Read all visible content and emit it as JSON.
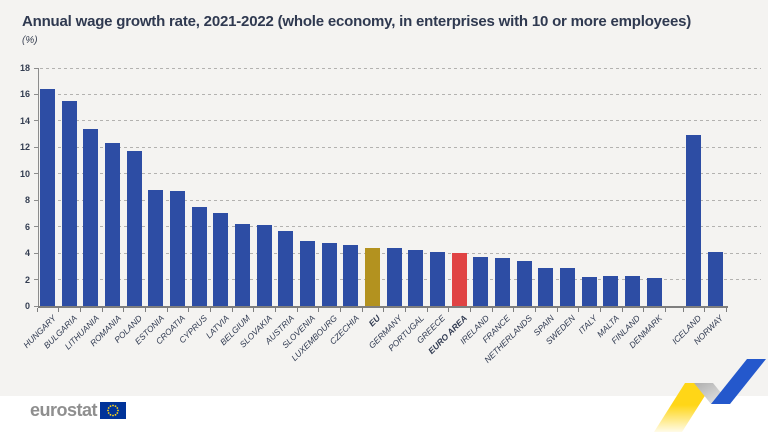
{
  "header": {
    "title": "Annual wage growth rate, 2021-2022 (whole economy, in enterprises with 10 or more employees)",
    "subtitle": "(%)"
  },
  "footer": {
    "logo_text": "eurostat"
  },
  "colors": {
    "background": "#f4f3f1",
    "footer_background": "#ffffff",
    "title_text": "#2f3950",
    "axis_text": "#333d51",
    "gridline": "#b3b2b0",
    "axis_line": "#7e7e7e",
    "bar_default": "#2d4da4",
    "bar_eu": "#b3921f",
    "bar_euro_area": "#e04343",
    "logo_text": "#8f8f8f",
    "logo_flag_bg": "#003399",
    "logo_star": "#ffd617",
    "ribbon_yellow": "#ffd617",
    "ribbon_gray": "#c3c3c3",
    "ribbon_blue": "#2458cc"
  },
  "chart_data": {
    "type": "bar",
    "title": "Annual wage growth rate, 2021-2022 (whole economy, in enterprises with 10 or more employees)",
    "xlabel": "",
    "ylabel": "(%)",
    "ylim": [
      0,
      18
    ],
    "yticks": [
      0,
      2,
      4,
      6,
      8,
      10,
      12,
      14,
      16,
      18
    ],
    "grid": "horizontal-dashed",
    "legend_position": "none",
    "categories": [
      "HUNGARY",
      "BULGARIA",
      "LITHUANIA",
      "ROMANIA",
      "POLAND",
      "ESTONIA",
      "CROATIA",
      "CYPRUS",
      "LATVIA",
      "BELGIUM",
      "SLOVAKIA",
      "AUSTRIA",
      "SLOVENIA",
      "LUXEMBOURG",
      "CZECHIA",
      "EU",
      "GERMANY",
      "PORTUGAL",
      "GREECE",
      "EURO AREA",
      "IRELAND",
      "FRANCE",
      "NETHERLANDS",
      "SPAIN",
      "SWEDEN",
      "ITALY",
      "MALTA",
      "FINLAND",
      "DENMARK",
      "ICELAND",
      "NORWAY"
    ],
    "values": [
      16.4,
      15.5,
      13.4,
      12.3,
      11.7,
      8.8,
      8.7,
      7.5,
      7.0,
      6.2,
      6.1,
      5.7,
      4.9,
      4.8,
      4.6,
      4.4,
      4.4,
      4.2,
      4.1,
      4.0,
      3.7,
      3.6,
      3.4,
      2.9,
      2.9,
      2.2,
      2.3,
      2.3,
      2.1,
      12.9,
      4.1
    ],
    "color_keys": [
      "default",
      "default",
      "default",
      "default",
      "default",
      "default",
      "default",
      "default",
      "default",
      "default",
      "default",
      "default",
      "default",
      "default",
      "default",
      "eu",
      "default",
      "default",
      "default",
      "euro_area",
      "default",
      "default",
      "default",
      "default",
      "default",
      "default",
      "default",
      "default",
      "default",
      "default",
      "default"
    ],
    "bold_categories": [
      "EU",
      "EURO AREA"
    ],
    "gap_before_categories": [
      "ICELAND"
    ]
  }
}
